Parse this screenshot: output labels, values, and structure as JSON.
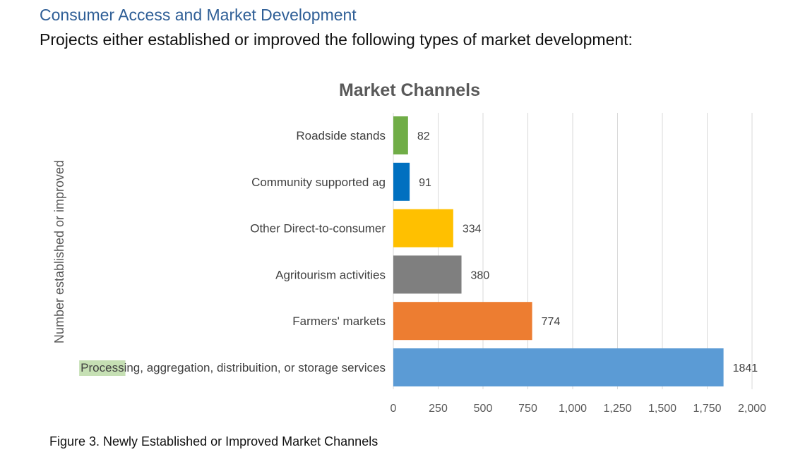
{
  "header": {
    "section_title": "Consumer Access and Market Development",
    "intro": "Projects either established or improved the following types of market development:"
  },
  "caption": "Figure 3. Newly Established or Improved Market Channels",
  "chart_data": {
    "type": "bar",
    "orientation": "horizontal",
    "title": "Market Channels",
    "ylabel": "Number established or improved",
    "xlabel": "",
    "categories": [
      "Roadside stands",
      "Community supported ag",
      "Other Direct-to-consumer",
      "Agritourism activities",
      "Farmers' markets",
      "Processing, aggregation, distribuition, or storage services"
    ],
    "values": [
      82,
      91,
      334,
      380,
      774,
      1841
    ],
    "data_labels": [
      "82",
      "91",
      "334",
      "380",
      "774",
      "1841"
    ],
    "colors": [
      "#70ad47",
      "#0070c0",
      "#ffc000",
      "#7f7f7f",
      "#ed7d31",
      "#5b9bd5"
    ],
    "xlim": [
      0,
      2000
    ],
    "xticks": [
      0,
      250,
      500,
      750,
      1000,
      1250,
      1500,
      1750,
      2000
    ],
    "xtick_labels": [
      "0",
      "250",
      "500",
      "750",
      "1,000",
      "1,250",
      "1,500",
      "1,750",
      "2,000"
    ],
    "grid": "vertical",
    "legend": "none",
    "highlighted_text": "Process",
    "highlight_color": "#c6e0b4"
  }
}
